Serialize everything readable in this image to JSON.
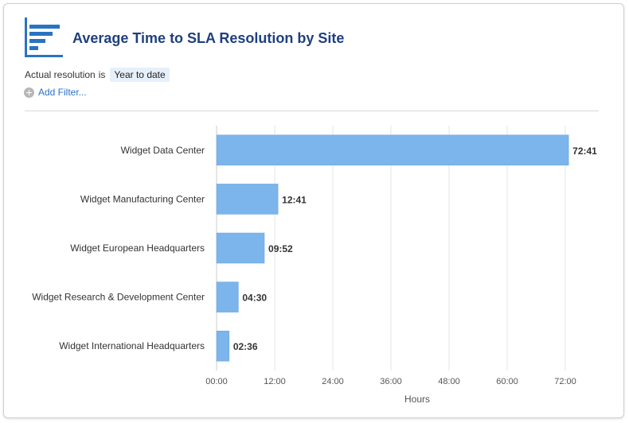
{
  "header": {
    "title": "Average Time to SLA Resolution by Site"
  },
  "filters": {
    "label": "Actual resolution",
    "operator": "is",
    "value": "Year to date",
    "add_filter_label": "Add Filter..."
  },
  "chart_data": {
    "type": "bar",
    "orientation": "horizontal",
    "categories": [
      "Widget Data Center",
      "Widget Manufacturing Center",
      "Widget European Headquarters",
      "Widget Research & Development Center",
      "Widget International Headquarters"
    ],
    "values": [
      72.683,
      12.683,
      9.867,
      4.5,
      2.6
    ],
    "value_labels": [
      "72:41",
      "12:41",
      "09:52",
      "04:30",
      "02:36"
    ],
    "xlabel": "Hours",
    "xlim": [
      0,
      72
    ],
    "x_ticks": [
      0,
      12,
      24,
      36,
      48,
      60,
      72
    ],
    "x_tick_labels": [
      "00:00",
      "12:00",
      "24:00",
      "36:00",
      "48:00",
      "60:00",
      "72:00"
    ],
    "grid": true,
    "bar_color": "#7cb4ec"
  }
}
